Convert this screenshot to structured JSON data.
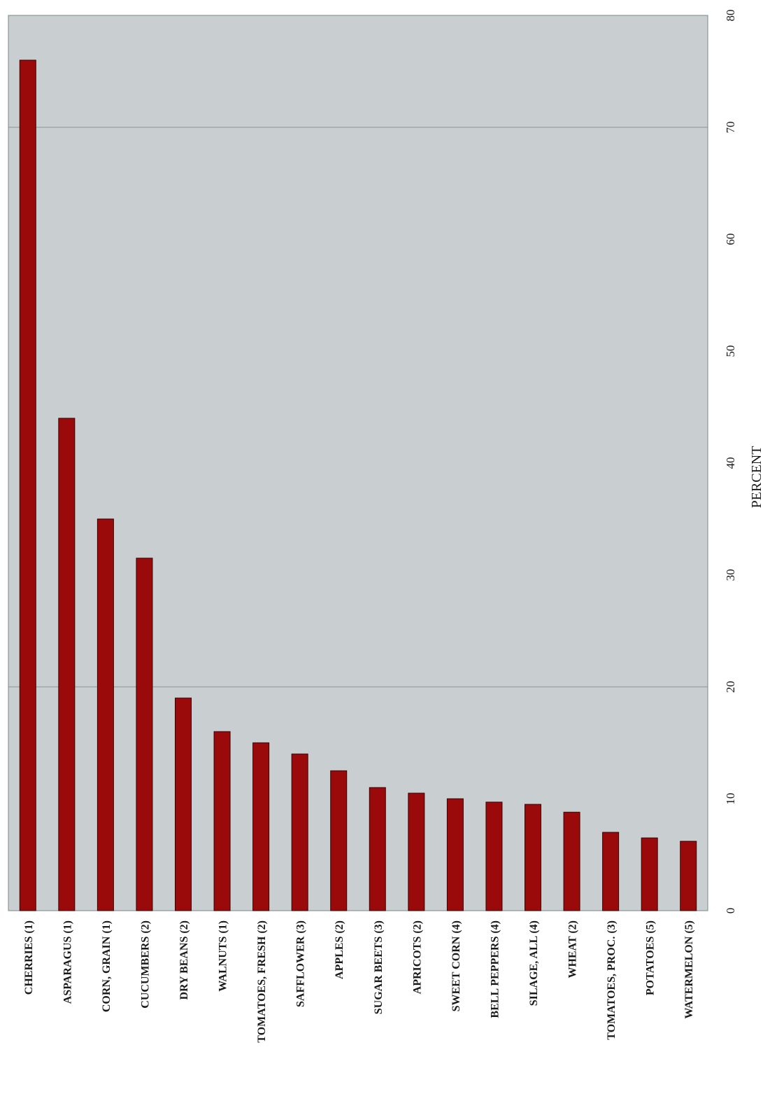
{
  "chart_data": {
    "type": "bar",
    "orientation": "rotated 90° (read sideways)",
    "xlabel": "",
    "ylabel": "PERCENT",
    "ylim": [
      0,
      80
    ],
    "yticks": [
      0,
      10,
      20,
      30,
      40,
      50,
      60,
      70,
      80
    ],
    "grid": "major gridlines at 20 and 70",
    "categories": [
      "CHERRIES (1)",
      "ASPARAGUS (1)",
      "CORN, GRAIN (1)",
      "CUCUMBERS (2)",
      "DRY BEANS (2)",
      "WALNUTS (1)",
      "TOMATOES, FRESH (2)",
      "SAFFLOWER (3)",
      "APPLES (2)",
      "SUGAR BEETS (3)",
      "APRICOTS (2)",
      "SWEET CORN (4)",
      "BELL PEPPERS (4)",
      "SILAGE, ALL (4)",
      "WHEAT (2)",
      "TOMATOES, PROC. (3)",
      "POTATOES (5)",
      "WATERMELON (5)"
    ],
    "values": [
      76,
      44,
      35,
      31.5,
      19,
      16,
      15,
      14,
      12.5,
      11,
      10.5,
      10,
      9.7,
      9.5,
      8.8,
      7,
      6.5,
      6.2
    ],
    "colors": {
      "bar": "#9b0a0a",
      "plot_background": "#c9ced0",
      "grid": "#8a9496",
      "text": "#1a1a1a"
    }
  }
}
